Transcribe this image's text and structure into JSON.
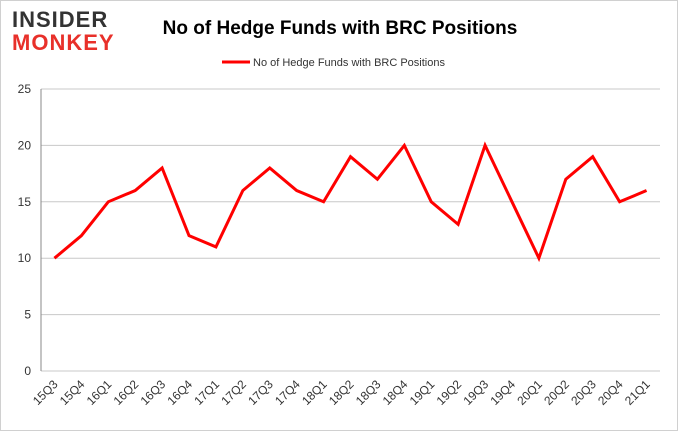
{
  "logo": {
    "line1": "INSIDER",
    "line2": "MONKEY"
  },
  "chart_data": {
    "type": "line",
    "title": "No of Hedge Funds with BRC Positions",
    "categories": [
      "15Q3",
      "15Q4",
      "16Q1",
      "16Q2",
      "16Q3",
      "16Q4",
      "17Q1",
      "17Q2",
      "17Q3",
      "17Q4",
      "18Q1",
      "18Q2",
      "18Q3",
      "18Q4",
      "19Q1",
      "19Q2",
      "19Q3",
      "19Q4",
      "20Q1",
      "20Q2",
      "20Q3",
      "20Q4",
      "21Q1"
    ],
    "series": [
      {
        "name": "No of Hedge Funds with BRC Positions",
        "color": "#ff0000",
        "values": [
          10,
          12,
          15,
          16,
          18,
          12,
          11,
          16,
          18,
          16,
          15,
          19,
          17,
          20,
          15,
          13,
          20,
          15,
          10,
          17,
          19,
          15,
          16
        ]
      }
    ],
    "ylim": [
      0,
      25
    ],
    "yticks": [
      0,
      5,
      10,
      15,
      20,
      25
    ],
    "grid": true,
    "legend": "top"
  }
}
